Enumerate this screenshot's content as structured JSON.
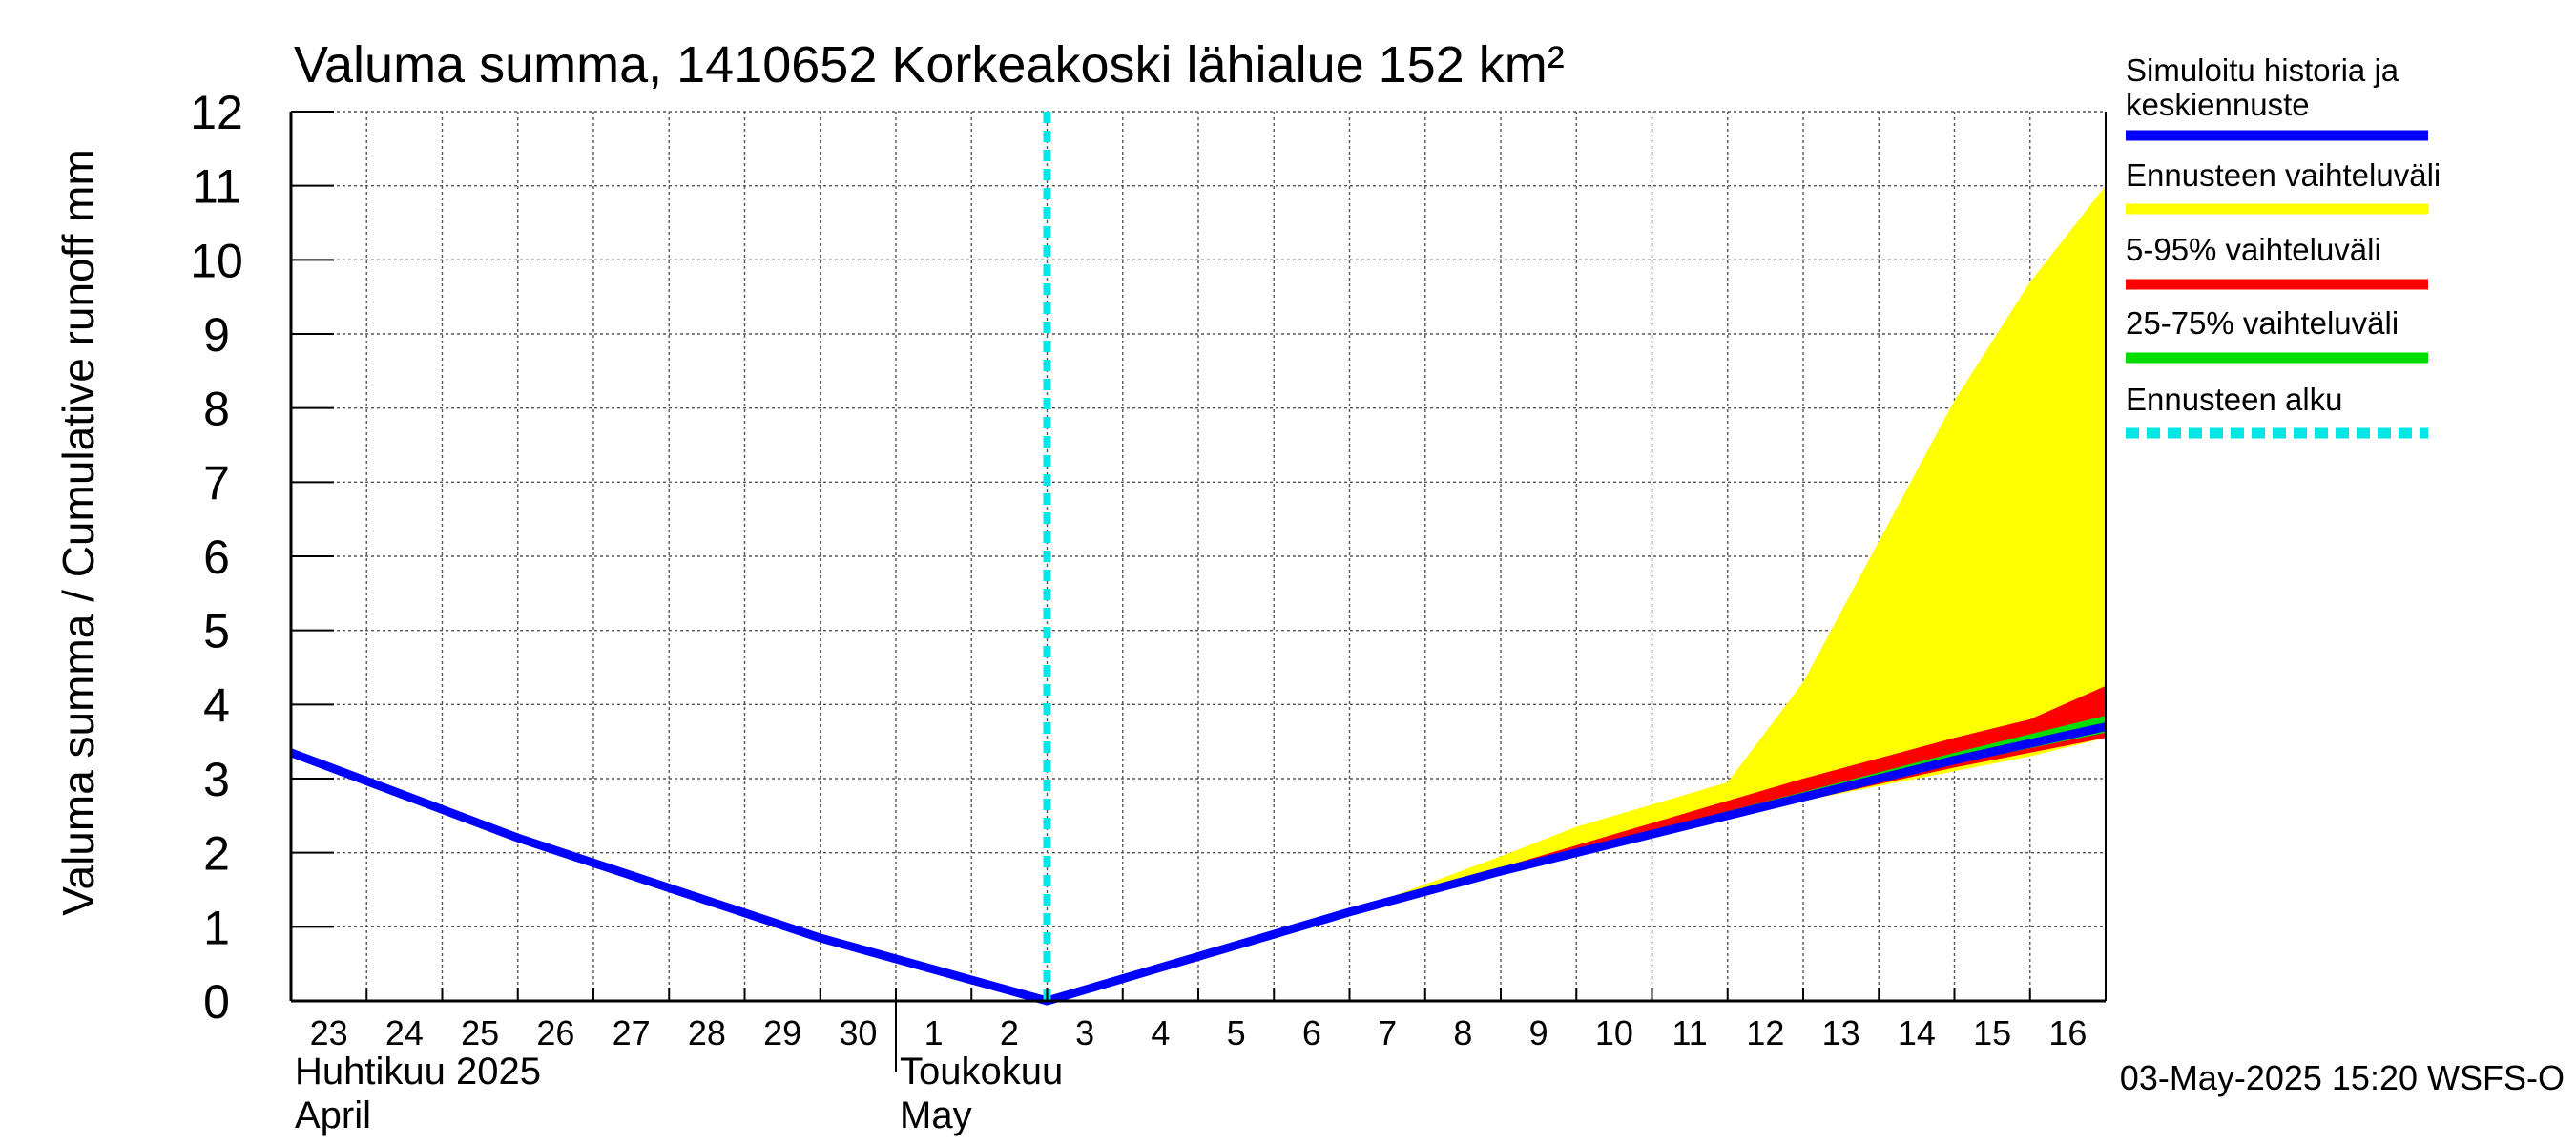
{
  "chart_data": {
    "type": "area",
    "title": "Valuma summa, 1410652 Korkeakoski lähialue 152 km²",
    "ylabel": "Valuma summa / Cumulative runoff    mm",
    "ylim": [
      0,
      12
    ],
    "y_ticks": [
      "0",
      "1",
      "2",
      "3",
      "4",
      "5",
      "6",
      "7",
      "8",
      "9",
      "10",
      "11",
      "12"
    ],
    "x_range": [
      "2025-04-23",
      "2025-05-17"
    ],
    "x_tick_labels": [
      "23",
      "24",
      "25",
      "26",
      "27",
      "28",
      "29",
      "30",
      "1",
      "2",
      "3",
      "4",
      "5",
      "6",
      "7",
      "8",
      "9",
      "10",
      "11",
      "12",
      "13",
      "14",
      "15",
      "16"
    ],
    "x_tick_dates": [
      "2025-04-23",
      "2025-04-24",
      "2025-04-25",
      "2025-04-26",
      "2025-04-27",
      "2025-04-28",
      "2025-04-29",
      "2025-04-30",
      "2025-05-01",
      "2025-05-02",
      "2025-05-03",
      "2025-05-04",
      "2025-05-05",
      "2025-05-06",
      "2025-05-07",
      "2025-05-08",
      "2025-05-09",
      "2025-05-10",
      "2025-05-11",
      "2025-05-12",
      "2025-05-13",
      "2025-05-14",
      "2025-05-15",
      "2025-05-16"
    ],
    "month_labels": [
      {
        "fi": "Huhtikuu  2025",
        "en": "April",
        "start": "2025-04-23"
      },
      {
        "fi": "Toukokuu",
        "en": "May",
        "start": "2025-05-01"
      }
    ],
    "grid": true,
    "legend_position": "right",
    "forecast_start": "2025-05-03",
    "series": [
      {
        "name": "Simuloitu historia ja keskiennuste",
        "color": "#0000ff",
        "kind": "line",
        "points": [
          {
            "x": "2025-04-23",
            "y": 3.35
          },
          {
            "x": "2025-04-26",
            "y": 2.2
          },
          {
            "x": "2025-04-30",
            "y": 0.85
          },
          {
            "x": "2025-05-03",
            "y": 0.0
          },
          {
            "x": "2025-05-05",
            "y": 0.6
          },
          {
            "x": "2025-05-07",
            "y": 1.2
          },
          {
            "x": "2025-05-09",
            "y": 1.75
          },
          {
            "x": "2025-05-11",
            "y": 2.25
          },
          {
            "x": "2025-05-13",
            "y": 2.75
          },
          {
            "x": "2025-05-15",
            "y": 3.25
          },
          {
            "x": "2025-05-17",
            "y": 3.7
          }
        ]
      },
      {
        "name": "Ennusteen vaihteluväli",
        "color": "#ffff00",
        "kind": "band",
        "points": [
          {
            "x": "2025-05-07",
            "low": 1.2,
            "high": 1.2
          },
          {
            "x": "2025-05-09",
            "low": 1.7,
            "high": 1.95
          },
          {
            "x": "2025-05-10",
            "low": 1.95,
            "high": 2.35
          },
          {
            "x": "2025-05-12",
            "low": 2.45,
            "high": 2.95
          },
          {
            "x": "2025-05-13",
            "low": 2.7,
            "high": 4.3
          },
          {
            "x": "2025-05-14",
            "low": 2.9,
            "high": 6.2
          },
          {
            "x": "2025-05-15",
            "low": 3.1,
            "high": 8.1
          },
          {
            "x": "2025-05-16",
            "low": 3.3,
            "high": 9.7
          },
          {
            "x": "2025-05-17",
            "low": 3.55,
            "high": 11.0
          }
        ]
      },
      {
        "name": "5-95% vaihteluväli",
        "color": "#ff0000",
        "kind": "band",
        "points": [
          {
            "x": "2025-05-07",
            "low": 1.2,
            "high": 1.2
          },
          {
            "x": "2025-05-09",
            "low": 1.7,
            "high": 1.8
          },
          {
            "x": "2025-05-11",
            "low": 2.2,
            "high": 2.4
          },
          {
            "x": "2025-05-13",
            "low": 2.7,
            "high": 3.0
          },
          {
            "x": "2025-05-15",
            "low": 3.15,
            "high": 3.55
          },
          {
            "x": "2025-05-16",
            "low": 3.35,
            "high": 3.8
          },
          {
            "x": "2025-05-17",
            "low": 3.55,
            "high": 4.25
          }
        ]
      },
      {
        "name": "25-75% vaihteluväli",
        "color": "#00dd00",
        "kind": "band",
        "points": [
          {
            "x": "2025-05-07",
            "low": 1.2,
            "high": 1.2
          },
          {
            "x": "2025-05-09",
            "low": 1.72,
            "high": 1.78
          },
          {
            "x": "2025-05-11",
            "low": 2.22,
            "high": 2.3
          },
          {
            "x": "2025-05-13",
            "low": 2.72,
            "high": 2.82
          },
          {
            "x": "2025-05-15",
            "low": 3.2,
            "high": 3.35
          },
          {
            "x": "2025-05-17",
            "low": 3.62,
            "high": 3.85
          }
        ]
      },
      {
        "name": "Ennusteen alku",
        "color": "#00e5e5",
        "kind": "vline",
        "x": "2025-05-03"
      }
    ],
    "legend": [
      "Simuloitu historia ja keskiennuste",
      "Ennusteen vaihteluväli",
      "5-95% vaihteluväli",
      "25-75% vaihteluväli",
      "Ennusteen alku"
    ]
  },
  "footer": "03-May-2025 15:20 WSFS-O"
}
